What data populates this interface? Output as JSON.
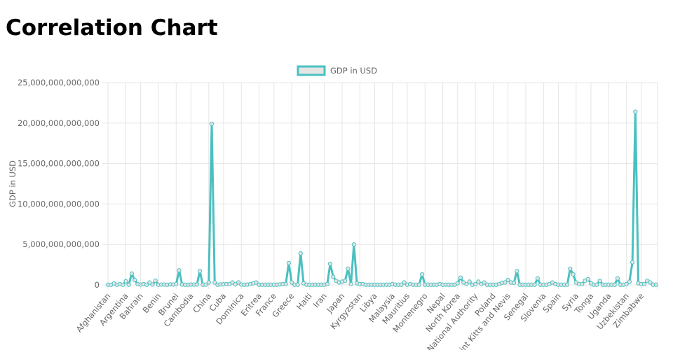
{
  "page": {
    "title": "Correlation Chart"
  },
  "chart_data": {
    "type": "line",
    "title": "",
    "xlabel": "",
    "ylabel": "GDP in USD",
    "ylim": [
      0,
      25000000000000
    ],
    "yticks": [
      "25,000,000,000,000",
      "20,000,000,000,000",
      "15,000,000,000,000",
      "10,000,000,000,000",
      "5,000,000,000,000",
      "0"
    ],
    "grid": true,
    "legend_position": "top-center",
    "colors": {
      "line": "#4bc0c0",
      "fill": "#e5e5e5",
      "grid": "#e5e5e5"
    },
    "x_tick_labels": [
      "Afghanistan",
      "Argentina",
      "Bahrain",
      "Benin",
      "Brunei",
      "Cambodia",
      "China",
      "Cuba",
      "Dominica",
      "Eritrea",
      "France",
      "Greece",
      "Haiti",
      "Iran",
      "Japan",
      "Kyrgyzstan",
      "Libya",
      "Malaysia",
      "Mauritius",
      "Montenegro",
      "Nepal",
      "North Korea",
      "National Authority",
      "Poland",
      "Saint Kitts and Nevis",
      "Senegal",
      "Slovenia",
      "Spain",
      "Syria",
      "Tonga",
      "Uganda",
      "Uzbekistan",
      "Zimbabwe"
    ],
    "series": [
      {
        "name": "GDP in USD",
        "values": [
          20000000000,
          15000000000,
          170000000000,
          15000000000,
          100000000000,
          15000000000,
          450000000000,
          15000000000,
          1400000000000,
          600000000000,
          100000000000,
          40000000000,
          100000000000,
          20000000000,
          300000000000,
          40000000000,
          520000000000,
          15000000000,
          40000000000,
          40000000000,
          20000000000,
          60000000000,
          50000000000,
          100000000000,
          1800000000000,
          40000000000,
          20000000000,
          20000000000,
          40000000000,
          30000000000,
          50000000000,
          1700000000000,
          20000000000,
          30000000000,
          300000000000,
          19900000000000,
          300000000000,
          20000000000,
          60000000000,
          80000000000,
          100000000000,
          100000000000,
          300000000000,
          60000000000,
          300000000000,
          40000000000,
          20000000000,
          40000000000,
          100000000000,
          200000000000,
          300000000000,
          20000000000,
          20000000000,
          20000000000,
          20000000000,
          20000000000,
          20000000000,
          20000000000,
          60000000000,
          100000000000,
          100000000000,
          2700000000000,
          300000000000,
          20000000000,
          20000000000,
          3900000000000,
          200000000000,
          20000000000,
          20000000000,
          20000000000,
          20000000000,
          20000000000,
          20000000000,
          20000000000,
          100000000000,
          2600000000000,
          1000000000000,
          500000000000,
          300000000000,
          400000000000,
          500000000000,
          2000000000000,
          100000000000,
          5000000000000,
          200000000000,
          100000000000,
          100000000000,
          20000000000,
          20000000000,
          20000000000,
          20000000000,
          20000000000,
          20000000000,
          20000000000,
          20000000000,
          20000000000,
          100000000000,
          20000000000,
          20000000000,
          20000000000,
          300000000000,
          20000000000,
          100000000000,
          20000000000,
          20000000000,
          20000000000,
          1300000000000,
          20000000000,
          20000000000,
          20000000000,
          20000000000,
          20000000000,
          100000000000,
          20000000000,
          20000000000,
          20000000000,
          20000000000,
          20000000000,
          200000000000,
          900000000000,
          300000000000,
          100000000000,
          400000000000,
          20000000000,
          100000000000,
          400000000000,
          100000000000,
          300000000000,
          20000000000,
          20000000000,
          20000000000,
          20000000000,
          100000000000,
          250000000000,
          300000000000,
          600000000000,
          300000000000,
          250000000000,
          1700000000000,
          20000000000,
          20000000000,
          20000000000,
          20000000000,
          20000000000,
          20000000000,
          800000000000,
          20000000000,
          20000000000,
          20000000000,
          100000000000,
          300000000000,
          100000000000,
          20000000000,
          20000000000,
          20000000000,
          20000000000,
          2000000000000,
          1300000000000,
          300000000000,
          100000000000,
          100000000000,
          500000000000,
          700000000000,
          200000000000,
          20000000000,
          20000000000,
          500000000000,
          20000000000,
          20000000000,
          20000000000,
          20000000000,
          20000000000,
          800000000000,
          20000000000,
          20000000000,
          100000000000,
          400000000000,
          2800000000000,
          21400000000000,
          200000000000,
          100000000000,
          100000000000,
          500000000000,
          300000000000,
          20000000000,
          20000000000
        ]
      }
    ]
  }
}
